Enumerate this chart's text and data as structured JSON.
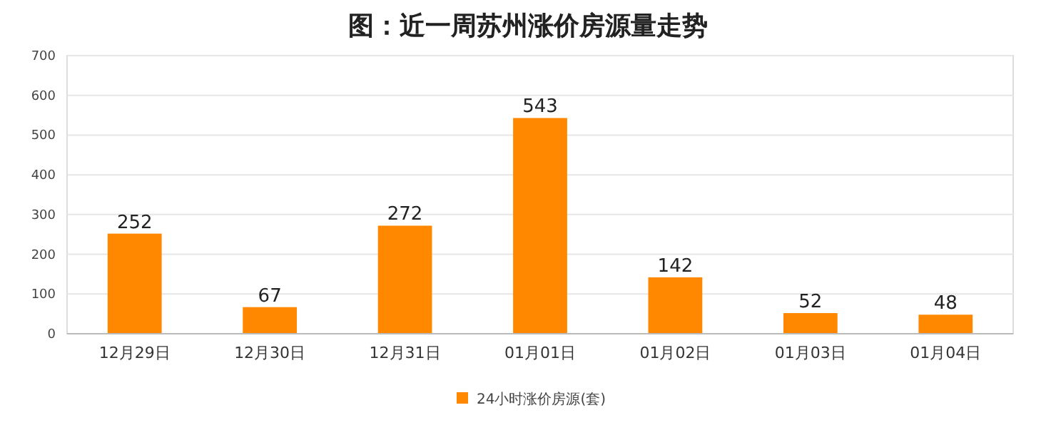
{
  "chart_data": {
    "type": "bar",
    "title": "图：近一周苏州涨价房源量走势",
    "categories": [
      "12月29日",
      "12月30日",
      "12月31日",
      "01月01日",
      "01月02日",
      "01月03日",
      "01月04日"
    ],
    "series": [
      {
        "name": "24小时涨价房源(套)",
        "color": "#ff8800",
        "values": [
          252,
          67,
          272,
          543,
          142,
          52,
          48
        ]
      }
    ],
    "ylim": [
      0,
      700
    ],
    "yticks": [
      0,
      100,
      200,
      300,
      400,
      500,
      600,
      700
    ],
    "grid": "y",
    "legend": "bottom",
    "data_labels": true
  }
}
